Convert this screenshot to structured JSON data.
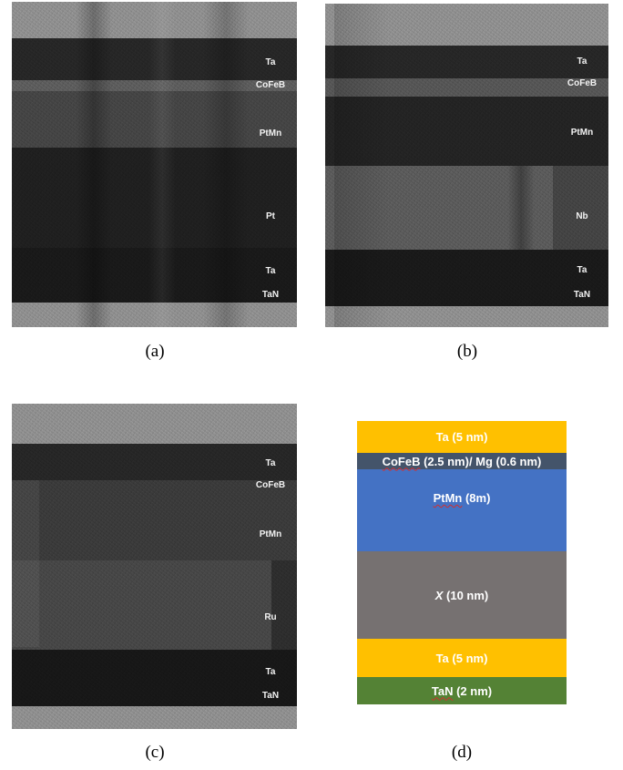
{
  "panels": [
    {
      "caption": "(a)",
      "labels": [
        "Ta",
        "CoFeB",
        "PtMn",
        "Pt",
        "Ta",
        "TaN"
      ]
    },
    {
      "caption": "(b)",
      "labels": [
        "Ta",
        "CoFeB",
        "PtMn",
        "Nb",
        "Ta",
        "TaN"
      ]
    },
    {
      "caption": "(c)",
      "labels": [
        "Ta",
        "CoFeB",
        "PtMn",
        "Ru",
        "Ta",
        "TaN"
      ]
    }
  ],
  "schematic": {
    "caption": "(d)",
    "layers": [
      {
        "name": "Ta",
        "text": " (5 nm)",
        "color": "#FFC000",
        "text_color": "#FFFFFF"
      },
      {
        "name": "CoFeB",
        "text": " (2.5 nm)/ Mg (0.6 nm)",
        "color": "#44546A",
        "text_color": "#FFFFFF"
      },
      {
        "name": "PtMn",
        "text": " (8m)",
        "color": "#4472C4",
        "text_color": "#FFFFFF"
      },
      {
        "name": "X",
        "text": " (10 nm)",
        "color": "#767171",
        "text_color": "#FFFFFF"
      },
      {
        "name": "Ta",
        "text": " (5 nm)",
        "color": "#FFC000",
        "text_color": "#FFFFFF"
      },
      {
        "name": "TaN",
        "text": " (2 nm)",
        "color": "#548235",
        "text_color": "#FFFFFF"
      }
    ]
  }
}
